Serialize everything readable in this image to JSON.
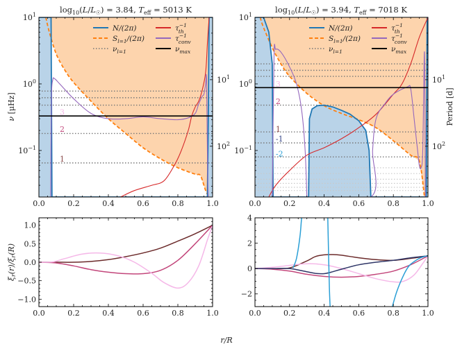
{
  "figure": {
    "shared_xlabel": "r/R"
  },
  "chart_data": [
    {
      "id": "top-left",
      "type": "line",
      "title": "log10(L/L☉) = 3.84, Teff = 5013 K",
      "title_parts": {
        "lum": "3.84",
        "teff": "5013"
      },
      "xlabel": "",
      "ylabel": "ν [μHz]",
      "yscale": "log",
      "xlim": [
        0.0,
        1.0
      ],
      "ylim": [
        0.02,
        10
      ],
      "xticks": [
        "0.0",
        "0.2",
        "0.4",
        "0.6",
        "0.8",
        "1.0"
      ],
      "yticks": [
        {
          "v": 10,
          "label": "10^1"
        },
        {
          "v": 1,
          "label": "10^0"
        },
        {
          "v": 0.1,
          "label": "10^-1"
        }
      ],
      "secondary_yaxis": {
        "label": "Period [d]",
        "ticks": [
          {
            "v": 10,
            "label": "10^1"
          },
          {
            "v": 100,
            "label": "10^2"
          }
        ]
      },
      "legend": {
        "placement": "top-right",
        "entries": [
          {
            "key": "N",
            "label": "N/(2π)",
            "color": "#1f77b4",
            "style": "solid"
          },
          {
            "key": "S",
            "label": "S_{l=1}/(2π)",
            "color": "#ff7f0e",
            "style": "dashed"
          },
          {
            "key": "nu",
            "label": "ν_{l=1}",
            "color": "#777777",
            "style": "dotted"
          },
          {
            "key": "tth",
            "label": "τ_th^-1",
            "color": "#d62728",
            "style": "solid"
          },
          {
            "key": "tconv",
            "label": "τ_conv^-1",
            "color": "#9467bd",
            "style": "solid"
          },
          {
            "key": "numax",
            "label": "ν_max",
            "color": "#000000",
            "style": "solid"
          }
        ]
      },
      "numax": 0.33,
      "mode_frequencies": [
        0.065,
        0.18,
        0.48,
        0.62,
        0.78
      ],
      "mode_labels": [
        {
          "label": "3",
          "nu": 0.38,
          "color": "#f5b8e8"
        },
        {
          "label": "2",
          "nu": 0.21,
          "color": "#c2457a"
        },
        {
          "label": "1",
          "nu": 0.075,
          "color": "#8b4a4a"
        }
      ],
      "series": [
        {
          "name": "N/(2π)",
          "x": [
            0.0,
            0.06,
            0.07,
            0.075,
            0.08,
            0.97,
            0.975,
            0.98,
            1.0
          ],
          "y": [
            10,
            10,
            10,
            0.02,
            0.02,
            0.02,
            0.3,
            10,
            10
          ]
        },
        {
          "name": "S_{l=1}/(2π)",
          "x": [
            0.04,
            0.06,
            0.1,
            0.15,
            0.2,
            0.3,
            0.4,
            0.5,
            0.6,
            0.7,
            0.8,
            0.9,
            0.93,
            0.96,
            0.98
          ],
          "y": [
            10,
            6,
            2.8,
            1.6,
            1.05,
            0.55,
            0.3,
            0.18,
            0.11,
            0.075,
            0.055,
            0.044,
            0.042,
            0.025,
            0.02
          ]
        },
        {
          "name": "τ_th^-1",
          "x": [
            0.47,
            0.55,
            0.65,
            0.72,
            0.78,
            0.82,
            0.86,
            0.88,
            0.9,
            0.92,
            0.94,
            0.96,
            0.97,
            0.98
          ],
          "y": [
            0.02,
            0.025,
            0.03,
            0.035,
            0.06,
            0.1,
            0.2,
            0.33,
            0.45,
            0.55,
            0.8,
            1.5,
            4,
            10
          ]
        },
        {
          "name": "τ_conv^-1",
          "x": [
            0.068,
            0.072,
            0.08,
            0.09,
            0.12,
            0.2,
            0.3,
            0.4,
            0.5,
            0.6,
            0.7,
            0.8,
            0.86,
            0.9,
            0.92,
            0.94,
            0.95,
            0.96,
            0.965,
            0.97,
            0.975,
            0.98
          ],
          "y": [
            0.02,
            0.6,
            1.15,
            1.2,
            1.0,
            0.6,
            0.36,
            0.3,
            0.3,
            0.32,
            0.3,
            0.29,
            0.31,
            0.36,
            0.5,
            0.65,
            0.7,
            1.0,
            1.2,
            0.1,
            0.02,
            0.02
          ]
        }
      ]
    },
    {
      "id": "top-right",
      "type": "line",
      "title": "log10(L/L☉) = 3.94, Teff = 7018 K",
      "title_parts": {
        "lum": "3.94",
        "teff": "7018"
      },
      "xlabel": "",
      "ylabel": "",
      "yscale": "log",
      "xlim": [
        0.0,
        1.0
      ],
      "ylim": [
        0.02,
        10
      ],
      "xticks": [
        "0.0",
        "0.2",
        "0.4",
        "0.6",
        "0.8",
        "1.0"
      ],
      "yticks": [
        {
          "v": 10,
          "label": "10^1"
        },
        {
          "v": 1,
          "label": "10^0"
        },
        {
          "v": 0.1,
          "label": "10^-1"
        }
      ],
      "secondary_yaxis": {
        "label": "Period [d]",
        "ticks": [
          {
            "v": 10,
            "label": "10^1"
          },
          {
            "v": 100,
            "label": "10^2"
          }
        ]
      },
      "legend": {
        "placement": "top-right",
        "same_as": "top-left"
      },
      "numax": 0.88,
      "mode_frequencies": [
        0.08,
        0.13,
        0.19,
        0.48,
        1.3,
        1.6,
        2.0
      ],
      "faint_mode_frequencies": [
        0.025,
        0.028,
        0.032,
        0.037,
        0.045,
        0.055
      ],
      "mode_labels": [
        {
          "label": "3",
          "nu": 1.0,
          "color": "#f5b8e8"
        },
        {
          "label": "2",
          "nu": 0.55,
          "color": "#c2457a"
        },
        {
          "label": "1",
          "nu": 0.21,
          "color": "#8b4a4a"
        },
        {
          "label": "-1",
          "nu": 0.15,
          "color": "#3b4a8a"
        },
        {
          "label": "-2",
          "nu": 0.09,
          "color": "#2a9fd6"
        }
      ],
      "series": [
        {
          "name": "N/(2π)",
          "x": [
            0,
            0.05,
            0.08,
            0.1,
            0.105,
            0.11,
            0.31,
            0.315,
            0.33,
            0.36,
            0.4,
            0.45,
            0.5,
            0.55,
            0.6,
            0.64,
            0.66,
            0.67,
            0.99,
            0.995,
            1.0
          ],
          "y": [
            10,
            10,
            6,
            2,
            0.02,
            0.02,
            0.02,
            0.3,
            0.42,
            0.47,
            0.48,
            0.45,
            0.4,
            0.35,
            0.28,
            0.2,
            0.1,
            0.02,
            0.02,
            10,
            10
          ]
        },
        {
          "name": "S_{l=1}/(2π)",
          "x": [
            0.03,
            0.05,
            0.1,
            0.15,
            0.2,
            0.3,
            0.4,
            0.5,
            0.6,
            0.7,
            0.8,
            0.9,
            0.95,
            0.98
          ],
          "y": [
            10,
            7,
            3.5,
            2,
            1.3,
            0.72,
            0.47,
            0.36,
            0.29,
            0.22,
            0.14,
            0.085,
            0.07,
            0.02
          ]
        },
        {
          "name": "τ_th^-1",
          "x": [
            0.08,
            0.12,
            0.2,
            0.3,
            0.4,
            0.5,
            0.6,
            0.7,
            0.8,
            0.85,
            0.9,
            0.95,
            1.0
          ],
          "y": [
            0.02,
            0.03,
            0.05,
            0.085,
            0.11,
            0.15,
            0.22,
            0.35,
            0.7,
            1.0,
            2.0,
            5,
            10
          ]
        },
        {
          "name": "τ_conv^-1",
          "x": [
            0.1,
            0.11,
            0.12,
            0.15,
            0.2,
            0.24,
            0.27,
            0.29,
            0.3,
            0.3,
            0.67,
            0.68,
            0.7,
            0.75,
            0.8,
            0.88,
            0.9,
            0.92,
            0.94,
            0.95,
            0.96,
            0.97,
            0.98,
            0.985
          ],
          "y": [
            0.02,
            2.5,
            3.3,
            3.0,
            1.8,
            1.0,
            0.4,
            0.1,
            0.02,
            0.02,
            0.02,
            0.1,
            0.3,
            0.5,
            0.7,
            0.9,
            0.85,
            0.3,
            0.1,
            0.06,
            0.055,
            0.1,
            3.0,
            0.02
          ]
        }
      ]
    },
    {
      "id": "bottom-left",
      "type": "line",
      "xlabel": "r/R",
      "ylabel": "ξ_r(r)/ξ_r(R)",
      "xlim": [
        0.0,
        1.0
      ],
      "ylim": [
        -1.2,
        1.2
      ],
      "xticks": [
        "0.0",
        "0.2",
        "0.4",
        "0.6",
        "0.8",
        "1.0"
      ],
      "yticks": [
        "1.0",
        "0.5",
        "0.0",
        "−0.5",
        "−1.0"
      ],
      "series": [
        {
          "name": "mode 1",
          "color": "#6b2a2a",
          "x": [
            0,
            0.1,
            0.2,
            0.3,
            0.4,
            0.5,
            0.6,
            0.7,
            0.8,
            0.9,
            1.0
          ],
          "y": [
            0,
            0,
            0,
            0.02,
            0.07,
            0.15,
            0.25,
            0.38,
            0.57,
            0.77,
            1.0
          ]
        },
        {
          "name": "mode 2",
          "color": "#c2457a",
          "x": [
            0,
            0.1,
            0.2,
            0.3,
            0.4,
            0.5,
            0.6,
            0.7,
            0.8,
            0.9,
            1.0
          ],
          "y": [
            0,
            -0.02,
            -0.1,
            -0.2,
            -0.27,
            -0.31,
            -0.31,
            -0.22,
            0.05,
            0.5,
            1.0
          ]
        },
        {
          "name": "mode 3",
          "color": "#f5b8e8",
          "x": [
            0,
            0.08,
            0.15,
            0.25,
            0.35,
            0.45,
            0.55,
            0.65,
            0.72,
            0.8,
            0.86,
            0.92,
            0.97,
            1.0
          ],
          "y": [
            0,
            0.01,
            0.1,
            0.22,
            0.25,
            0.18,
            0.0,
            -0.3,
            -0.55,
            -0.7,
            -0.55,
            -0.1,
            0.6,
            1.0
          ]
        }
      ]
    },
    {
      "id": "bottom-right",
      "type": "line",
      "xlabel": "r/R",
      "ylabel": "",
      "xlim": [
        0.0,
        1.0
      ],
      "ylim": [
        -3,
        4
      ],
      "xticks": [
        "0.0",
        "0.2",
        "0.4",
        "0.6",
        "0.8",
        "1.0"
      ],
      "yticks": [
        "4",
        "2",
        "0",
        "−2"
      ],
      "series": [
        {
          "name": "mode 1",
          "color": "#6b2a2a",
          "x": [
            0,
            0.1,
            0.2,
            0.3,
            0.35,
            0.4,
            0.45,
            0.5,
            0.6,
            0.7,
            0.8,
            0.9,
            1.0
          ],
          "y": [
            0,
            0,
            0.05,
            0.6,
            0.95,
            1.08,
            1.1,
            1.05,
            0.85,
            0.7,
            0.65,
            0.8,
            1.0
          ]
        },
        {
          "name": "mode 2",
          "color": "#c2457a",
          "x": [
            0,
            0.1,
            0.2,
            0.3,
            0.4,
            0.5,
            0.6,
            0.7,
            0.8,
            0.9,
            1.0
          ],
          "y": [
            0,
            -0.05,
            -0.2,
            -0.45,
            -0.62,
            -0.68,
            -0.62,
            -0.45,
            -0.2,
            0.3,
            1.0
          ]
        },
        {
          "name": "mode 3",
          "color": "#f5b8e8",
          "x": [
            0,
            0.1,
            0.2,
            0.3,
            0.4,
            0.5,
            0.6,
            0.7,
            0.8,
            0.86,
            0.92,
            0.97,
            1.0
          ],
          "y": [
            0,
            0.1,
            0.25,
            0.38,
            0.3,
            0.0,
            -0.4,
            -0.8,
            -1.05,
            -1.0,
            -0.5,
            0.4,
            1.0
          ]
        },
        {
          "name": "mode -1",
          "color": "#2e3566",
          "x": [
            0,
            0.1,
            0.2,
            0.3,
            0.35,
            0.4,
            0.45,
            0.5,
            0.6,
            0.7,
            0.8,
            0.9,
            1.0
          ],
          "y": [
            0,
            0,
            0,
            -0.25,
            -0.38,
            -0.4,
            -0.25,
            -0.05,
            0.3,
            0.5,
            0.65,
            0.85,
            1.0
          ]
        },
        {
          "name": "mode -2",
          "color": "#2a9fd6",
          "x": [
            0.22,
            0.24,
            0.26,
            0.27,
            0.28
          ],
          "y": [
            0.05,
            0.8,
            2.5,
            4.0,
            4.5
          ]
        },
        {
          "name": "mode -2 b",
          "color": "#2a9fd6",
          "x": [
            0.42,
            0.425,
            0.43,
            0.435
          ],
          "y": [
            4.5,
            1.5,
            -1.5,
            -3.2
          ]
        },
        {
          "name": "mode -2 c",
          "color": "#2a9fd6",
          "x": [
            0.79,
            0.82,
            0.86,
            0.89,
            0.92,
            0.95,
            0.98,
            1.0
          ],
          "y": [
            -3.2,
            -1.8,
            -0.5,
            0.2,
            0.55,
            0.8,
            0.95,
            1.0
          ]
        }
      ]
    }
  ]
}
